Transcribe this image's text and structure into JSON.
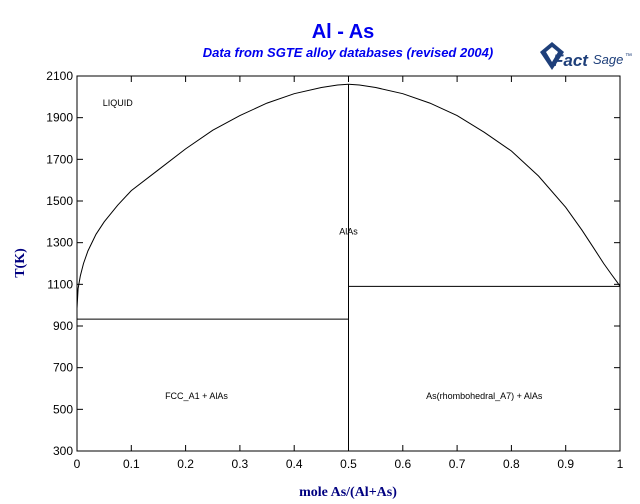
{
  "chart_data": {
    "type": "line",
    "title": "Al - As",
    "subtitle": "Data from SGTE alloy databases (revised 2004)",
    "xlabel": "mole As/(Al+As)",
    "ylabel": "T(K)",
    "xlim": [
      0,
      1
    ],
    "ylim": [
      300,
      2100
    ],
    "xticks": [
      0,
      0.1,
      0.2,
      0.3,
      0.4,
      0.5,
      0.6,
      0.7,
      0.8,
      0.9,
      1
    ],
    "xtick_labels": [
      "0",
      "0.1",
      "0.2",
      "0.3",
      "0.4",
      "0.5",
      "0.6",
      "0.7",
      "0.8",
      "0.9",
      "1"
    ],
    "yticks": [
      300,
      500,
      700,
      900,
      1100,
      1300,
      1500,
      1700,
      1900,
      2100
    ],
    "ytick_labels": [
      "300",
      "500",
      "700",
      "900",
      "1100",
      "1300",
      "1500",
      "1700",
      "1900",
      "2100"
    ],
    "grid": false,
    "series": [
      {
        "x": [
          0,
          0.002,
          0.006,
          0.012,
          0.02,
          0.035,
          0.05,
          0.075,
          0.1,
          0.15,
          0.2,
          0.25,
          0.3,
          0.35,
          0.4,
          0.45,
          0.48,
          0.5
        ],
        "y": [
          985,
          1080,
          1140,
          1200,
          1260,
          1340,
          1400,
          1480,
          1550,
          1650,
          1750,
          1840,
          1910,
          1970,
          2015,
          2045,
          2057,
          2060
        ]
      },
      {
        "x": [
          0.5,
          0.52,
          0.55,
          0.6,
          0.65,
          0.7,
          0.75,
          0.8,
          0.85,
          0.9,
          0.93,
          0.95,
          0.97,
          0.985,
          0.995,
          1
        ],
        "y": [
          2060,
          2057,
          2045,
          2015,
          1970,
          1910,
          1830,
          1740,
          1620,
          1470,
          1360,
          1280,
          1200,
          1145,
          1110,
          1090
        ]
      },
      {
        "x": [
          0.5,
          0.5
        ],
        "y": [
          300,
          2060
        ]
      },
      {
        "x": [
          0,
          0.5
        ],
        "y": [
          933,
          933
        ]
      },
      {
        "x": [
          0.5,
          1
        ],
        "y": [
          1090,
          1090
        ]
      }
    ],
    "annotations": [
      {
        "text": "LIQUID",
        "x": 0.075,
        "y": 1955
      },
      {
        "text": "AlAs",
        "x": 0.5,
        "y": 1340
      },
      {
        "text": "FCC_A1 + AlAs",
        "x": 0.22,
        "y": 550
      },
      {
        "text": "As(rhombohedral_A7) + AlAs",
        "x": 0.75,
        "y": 550
      }
    ]
  },
  "logo": {
    "fact": "Fact",
    "sage": "Sage",
    "tm": "™"
  },
  "colors": {
    "title": "#0000ee",
    "axis_label": "#000080",
    "lines": "#000000",
    "logo": "#1e3f7a"
  }
}
